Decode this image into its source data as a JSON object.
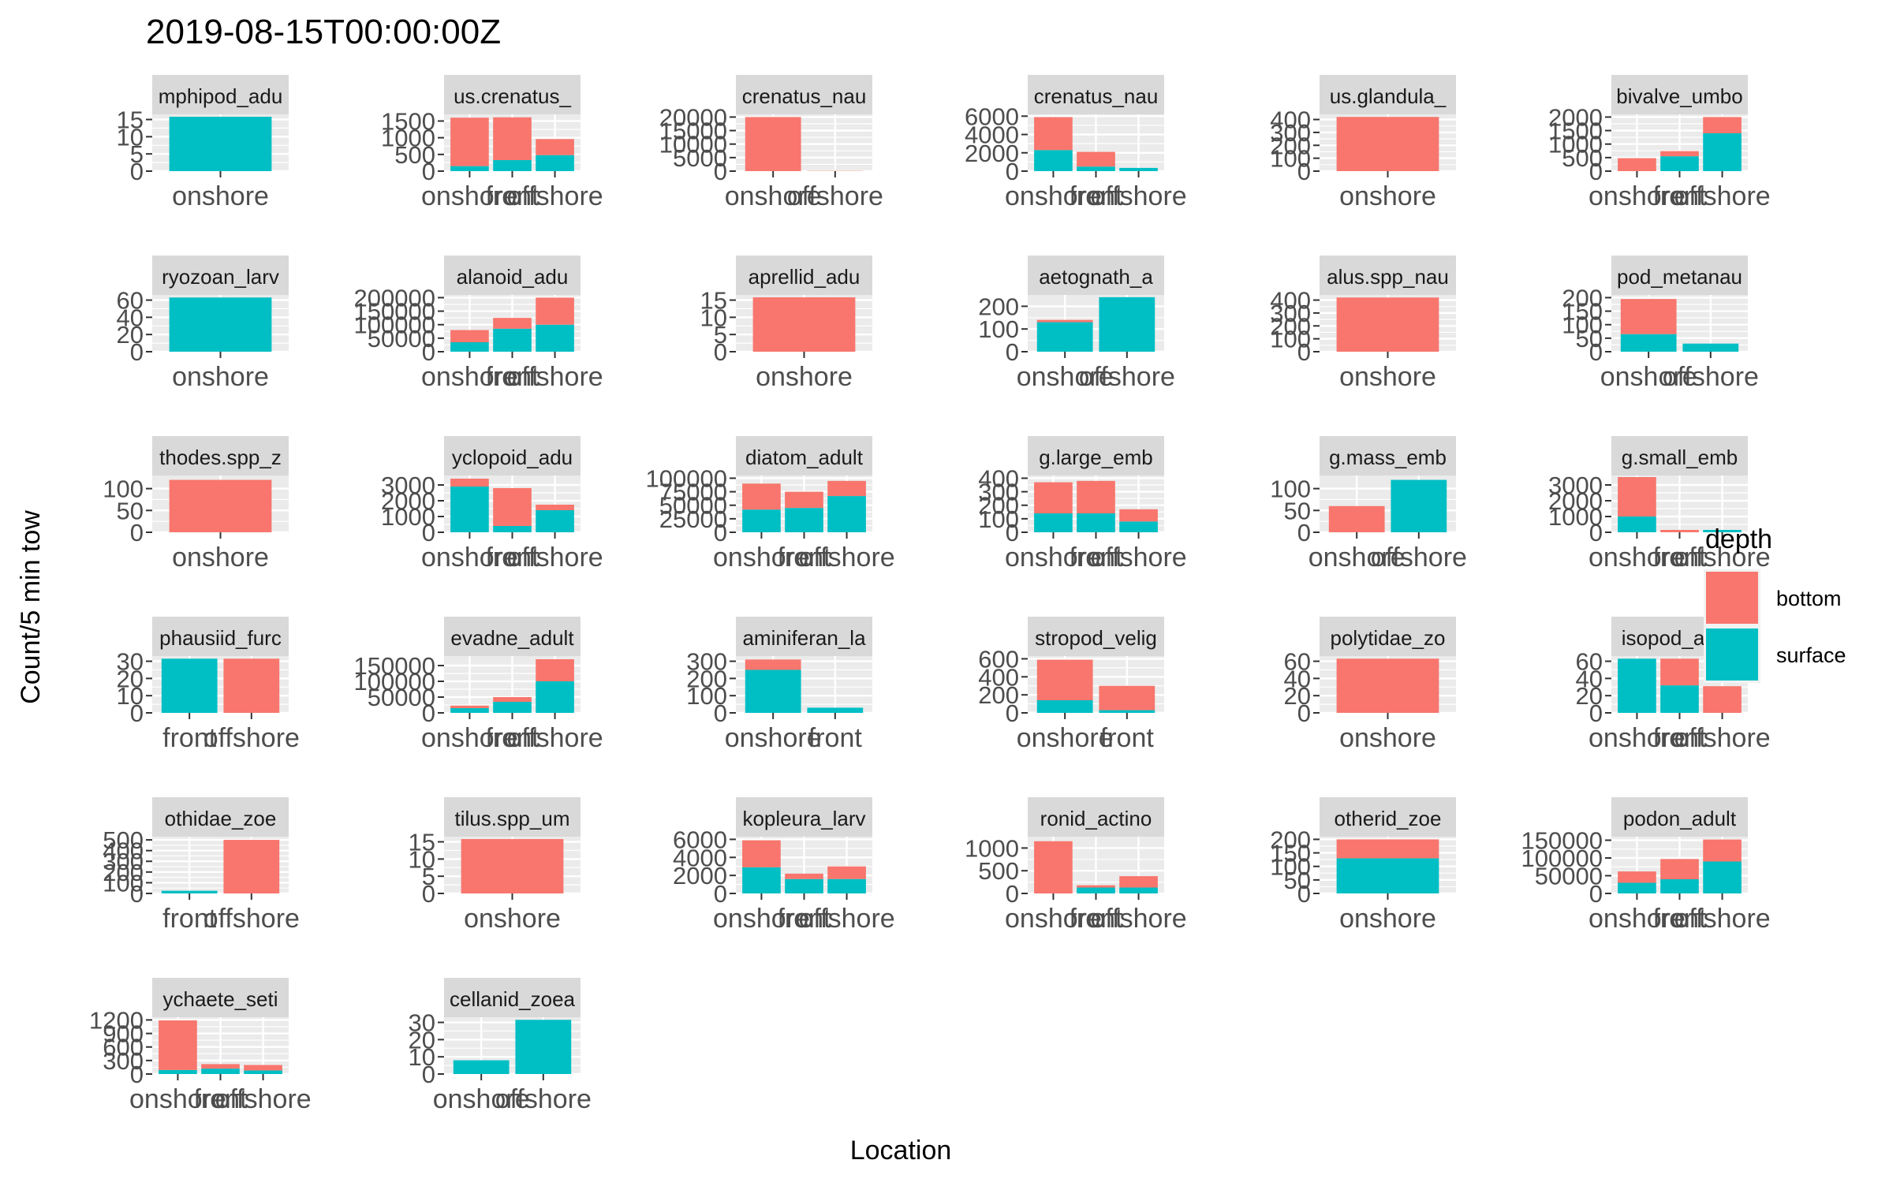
{
  "chart_data": {
    "type": "bar",
    "title": "2019-08-15T00:00:00Z",
    "xlabel": "Location",
    "ylabel": "Count/5 min tow",
    "legend": {
      "title": "depth",
      "position": "right",
      "entries": [
        {
          "label": "bottom",
          "color": "#F8766D"
        },
        {
          "label": "surface",
          "color": "#00BFC4"
        }
      ]
    },
    "stacking": "stacked",
    "series_names": [
      "bottom",
      "surface"
    ],
    "panels": [
      {
        "strip": "mphipod_adu",
        "categories": [
          "onshore"
        ],
        "tick_labels": [
          "onshore"
        ],
        "ylim": [
          0,
          16.5
        ],
        "yticks": [
          0,
          5,
          10,
          15
        ],
        "bottom": [
          0
        ],
        "surface": [
          15.8
        ]
      },
      {
        "strip": "us.crenatus_",
        "categories": [
          "onshore",
          "front",
          "offshore"
        ],
        "tick_labels": [
          "onshore",
          "front",
          "offshore"
        ],
        "ylim": [
          0,
          1700
        ],
        "yticks": [
          0,
          500,
          1000,
          1500
        ],
        "bottom": [
          1450,
          1280,
          480
        ],
        "surface": [
          150,
          330,
          480
        ]
      },
      {
        "strip": "crenatus_nau",
        "categories": [
          "onshore",
          "offshore"
        ],
        "tick_labels": [
          "onshore",
          "offshore"
        ],
        "ylim": [
          0,
          21000
        ],
        "yticks": [
          0,
          5000,
          10000,
          15000,
          20000
        ],
        "bottom": [
          20000,
          100
        ],
        "surface": [
          0,
          0
        ]
      },
      {
        "strip": "crenatus_nau",
        "categories": [
          "onshore",
          "front",
          "offshore"
        ],
        "tick_labels": [
          "onshore",
          "front",
          "offshore"
        ],
        "ylim": [
          0,
          6200
        ],
        "yticks": [
          0,
          2000,
          4000,
          6000
        ],
        "bottom": [
          3600,
          1600,
          0
        ],
        "surface": [
          2300,
          500,
          350
        ]
      },
      {
        "strip": "us.glandula_",
        "categories": [
          "onshore"
        ],
        "tick_labels": [
          "onshore"
        ],
        "ylim": [
          0,
          440
        ],
        "yticks": [
          0,
          100,
          200,
          300,
          400
        ],
        "bottom": [
          420
        ],
        "surface": [
          0
        ]
      },
      {
        "strip": "bivalve_umbo",
        "categories": [
          "onshore",
          "front",
          "offshore"
        ],
        "tick_labels": [
          "onshore",
          "front",
          "offshore"
        ],
        "ylim": [
          0,
          2100
        ],
        "yticks": [
          0,
          500,
          1000,
          1500,
          2000
        ],
        "bottom": [
          480,
          190,
          600
        ],
        "surface": [
          0,
          550,
          1400
        ]
      },
      {
        "strip": "ryozoan_larv",
        "categories": [
          "onshore"
        ],
        "tick_labels": [
          "onshore"
        ],
        "ylim": [
          0,
          66
        ],
        "yticks": [
          0,
          20,
          40,
          60
        ],
        "bottom": [
          0
        ],
        "surface": [
          63
        ]
      },
      {
        "strip": "alanoid_adu",
        "categories": [
          "onshore",
          "front",
          "offshore"
        ],
        "tick_labels": [
          "onshore",
          "front",
          "offshore"
        ],
        "ylim": [
          0,
          210000
        ],
        "yticks": [
          0,
          50000,
          100000,
          150000,
          200000
        ],
        "bottom": [
          45000,
          40000,
          100000
        ],
        "surface": [
          35000,
          85000,
          100000
        ]
      },
      {
        "strip": "aprellid_adu",
        "categories": [
          "onshore"
        ],
        "tick_labels": [
          "onshore"
        ],
        "ylim": [
          0,
          16.5
        ],
        "yticks": [
          0,
          5,
          10,
          15
        ],
        "bottom": [
          15.8
        ],
        "surface": [
          0
        ]
      },
      {
        "strip": "aetognath_a",
        "categories": [
          "onshore",
          "offshore"
        ],
        "tick_labels": [
          "onshore",
          "offshore"
        ],
        "ylim": [
          0,
          250
        ],
        "yticks": [
          0,
          100,
          200
        ],
        "bottom": [
          10,
          0
        ],
        "surface": [
          130,
          240
        ]
      },
      {
        "strip": "alus.spp_nau",
        "categories": [
          "onshore"
        ],
        "tick_labels": [
          "onshore"
        ],
        "ylim": [
          0,
          440
        ],
        "yticks": [
          0,
          100,
          200,
          300,
          400
        ],
        "bottom": [
          420
        ],
        "surface": [
          0
        ]
      },
      {
        "strip": "pod_metanau",
        "categories": [
          "onshore",
          "offshore"
        ],
        "tick_labels": [
          "onshore",
          "offshore"
        ],
        "ylim": [
          0,
          210
        ],
        "yticks": [
          0,
          50,
          100,
          150,
          200
        ],
        "bottom": [
          130,
          0
        ],
        "surface": [
          65,
          30
        ]
      },
      {
        "strip": "thodes.spp_z",
        "categories": [
          "onshore"
        ],
        "tick_labels": [
          "onshore"
        ],
        "ylim": [
          0,
          130
        ],
        "yticks": [
          0,
          50,
          100
        ],
        "bottom": [
          120
        ],
        "surface": [
          0
        ]
      },
      {
        "strip": "yclopoid_adu",
        "categories": [
          "onshore",
          "front",
          "offshore"
        ],
        "tick_labels": [
          "onshore",
          "front",
          "offshore"
        ],
        "ylim": [
          0,
          3600
        ],
        "yticks": [
          0,
          1000,
          2000,
          3000
        ],
        "bottom": [
          500,
          2400,
          350
        ],
        "surface": [
          2900,
          400,
          1400
        ]
      },
      {
        "strip": "diatom_adult",
        "categories": [
          "onshore",
          "front",
          "offshore"
        ],
        "tick_labels": [
          "onshore",
          "front",
          "offshore"
        ],
        "ylim": [
          0,
          105000
        ],
        "yticks": [
          0,
          25000,
          50000,
          75000,
          100000
        ],
        "bottom": [
          48000,
          30000,
          28000
        ],
        "surface": [
          42000,
          45000,
          67000
        ]
      },
      {
        "strip": "g.large_emb",
        "categories": [
          "onshore",
          "front",
          "offshore"
        ],
        "tick_labels": [
          "onshore",
          "front",
          "offshore"
        ],
        "ylim": [
          0,
          420
        ],
        "yticks": [
          0,
          100,
          200,
          300,
          400
        ],
        "bottom": [
          230,
          240,
          90
        ],
        "surface": [
          140,
          140,
          80
        ]
      },
      {
        "strip": "g.mass_emb",
        "categories": [
          "onshore",
          "offshore"
        ],
        "tick_labels": [
          "onshore",
          "offshore"
        ],
        "ylim": [
          0,
          130
        ],
        "yticks": [
          0,
          50,
          100
        ],
        "bottom": [
          60,
          0
        ],
        "surface": [
          0,
          120
        ]
      },
      {
        "strip": "g.small_emb",
        "categories": [
          "onshore",
          "front",
          "offshore"
        ],
        "tick_labels": [
          "onshore",
          "front",
          "offshore"
        ],
        "ylim": [
          0,
          3600
        ],
        "yticks": [
          0,
          1000,
          2000,
          3000
        ],
        "bottom": [
          2500,
          150,
          0
        ],
        "surface": [
          1000,
          0,
          150
        ]
      },
      {
        "strip": "phausiid_furc",
        "categories": [
          "front",
          "offshore"
        ],
        "tick_labels": [
          "front",
          "offshore"
        ],
        "ylim": [
          0,
          33
        ],
        "yticks": [
          0,
          10,
          20,
          30
        ],
        "bottom": [
          0,
          31.5
        ],
        "surface": [
          31.5,
          0
        ]
      },
      {
        "strip": "evadne_adult",
        "categories": [
          "onshore",
          "front",
          "offshore"
        ],
        "tick_labels": [
          "onshore",
          "front",
          "offshore"
        ],
        "ylim": [
          0,
          180000
        ],
        "yticks": [
          0,
          50000,
          100000,
          150000
        ],
        "bottom": [
          8000,
          15000,
          70000
        ],
        "surface": [
          15000,
          35000,
          100000
        ]
      },
      {
        "strip": "aminiferan_la",
        "categories": [
          "onshore",
          "front"
        ],
        "tick_labels": [
          "onshore",
          "front"
        ],
        "ylim": [
          0,
          330
        ],
        "yticks": [
          0,
          100,
          200,
          300
        ],
        "bottom": [
          60,
          0
        ],
        "surface": [
          250,
          30
        ]
      },
      {
        "strip": "stropod_velig",
        "categories": [
          "onshore",
          "front"
        ],
        "tick_labels": [
          "onshore",
          "front"
        ],
        "ylim": [
          0,
          630
        ],
        "yticks": [
          0,
          200,
          400,
          600
        ],
        "bottom": [
          450,
          270
        ],
        "surface": [
          140,
          30
        ]
      },
      {
        "strip": "polytidae_zo",
        "categories": [
          "onshore"
        ],
        "tick_labels": [
          "onshore"
        ],
        "ylim": [
          0,
          66
        ],
        "yticks": [
          0,
          20,
          40,
          60
        ],
        "bottom": [
          63
        ],
        "surface": [
          0
        ]
      },
      {
        "strip": "isopod_adult",
        "categories": [
          "onshore",
          "front",
          "offshore"
        ],
        "tick_labels": [
          "onshore",
          "front",
          "offshore"
        ],
        "ylim": [
          0,
          66
        ],
        "yticks": [
          0,
          20,
          40,
          60
        ],
        "bottom": [
          0,
          31,
          31
        ],
        "surface": [
          63,
          32,
          0
        ]
      },
      {
        "strip": "othidae_zoe",
        "categories": [
          "front",
          "offshore"
        ],
        "tick_labels": [
          "front",
          "offshore"
        ],
        "ylim": [
          0,
          530
        ],
        "yticks": [
          0,
          100,
          200,
          300,
          400,
          500
        ],
        "bottom": [
          0,
          500
        ],
        "surface": [
          25,
          0
        ]
      },
      {
        "strip": "tilus.spp_um",
        "categories": [
          "onshore"
        ],
        "tick_labels": [
          "onshore"
        ],
        "ylim": [
          0,
          16.5
        ],
        "yticks": [
          0,
          5,
          10,
          15
        ],
        "bottom": [
          15.8
        ],
        "surface": [
          0
        ]
      },
      {
        "strip": "kopleura_larv",
        "categories": [
          "onshore",
          "front",
          "offshore"
        ],
        "tick_labels": [
          "onshore",
          "front",
          "offshore"
        ],
        "ylim": [
          0,
          6300
        ],
        "yticks": [
          0,
          2000,
          4000,
          6000
        ],
        "bottom": [
          3000,
          600,
          1400
        ],
        "surface": [
          2900,
          1600,
          1600
        ]
      },
      {
        "strip": "ronid_actino",
        "categories": [
          "onshore",
          "front",
          "offshore"
        ],
        "tick_labels": [
          "onshore",
          "front",
          "offshore"
        ],
        "ylim": [
          0,
          1250
        ],
        "yticks": [
          0,
          500,
          1000
        ],
        "bottom": [
          1150,
          50,
          250
        ],
        "surface": [
          0,
          130,
          130
        ]
      },
      {
        "strip": "otherid_zoe",
        "categories": [
          "onshore"
        ],
        "tick_labels": [
          "onshore"
        ],
        "ylim": [
          0,
          210
        ],
        "yticks": [
          0,
          50,
          100,
          150,
          200
        ],
        "bottom": [
          70
        ],
        "surface": [
          130
        ]
      },
      {
        "strip": "podon_adult",
        "categories": [
          "onshore",
          "front",
          "offshore"
        ],
        "tick_labels": [
          "onshore",
          "front",
          "offshore"
        ],
        "ylim": [
          0,
          160000
        ],
        "yticks": [
          0,
          50000,
          100000,
          150000
        ],
        "bottom": [
          32000,
          57000,
          62000
        ],
        "surface": [
          30000,
          40000,
          90000
        ]
      },
      {
        "strip": "ychaete_seti",
        "categories": [
          "onshore",
          "front",
          "offshore"
        ],
        "tick_labels": [
          "onshore",
          "front",
          "offshore"
        ],
        "ylim": [
          0,
          1260
        ],
        "yticks": [
          0,
          300,
          600,
          900,
          1200
        ],
        "bottom": [
          1100,
          100,
          120
        ],
        "surface": [
          90,
          120,
          80
        ]
      },
      {
        "strip": "cellanid_zoea",
        "categories": [
          "onshore",
          "offshore"
        ],
        "tick_labels": [
          "onshore",
          "offshore"
        ],
        "ylim": [
          0,
          33
        ],
        "yticks": [
          0,
          10,
          20,
          30
        ],
        "bottom": [
          0,
          0
        ],
        "surface": [
          8,
          31.5
        ]
      }
    ]
  }
}
